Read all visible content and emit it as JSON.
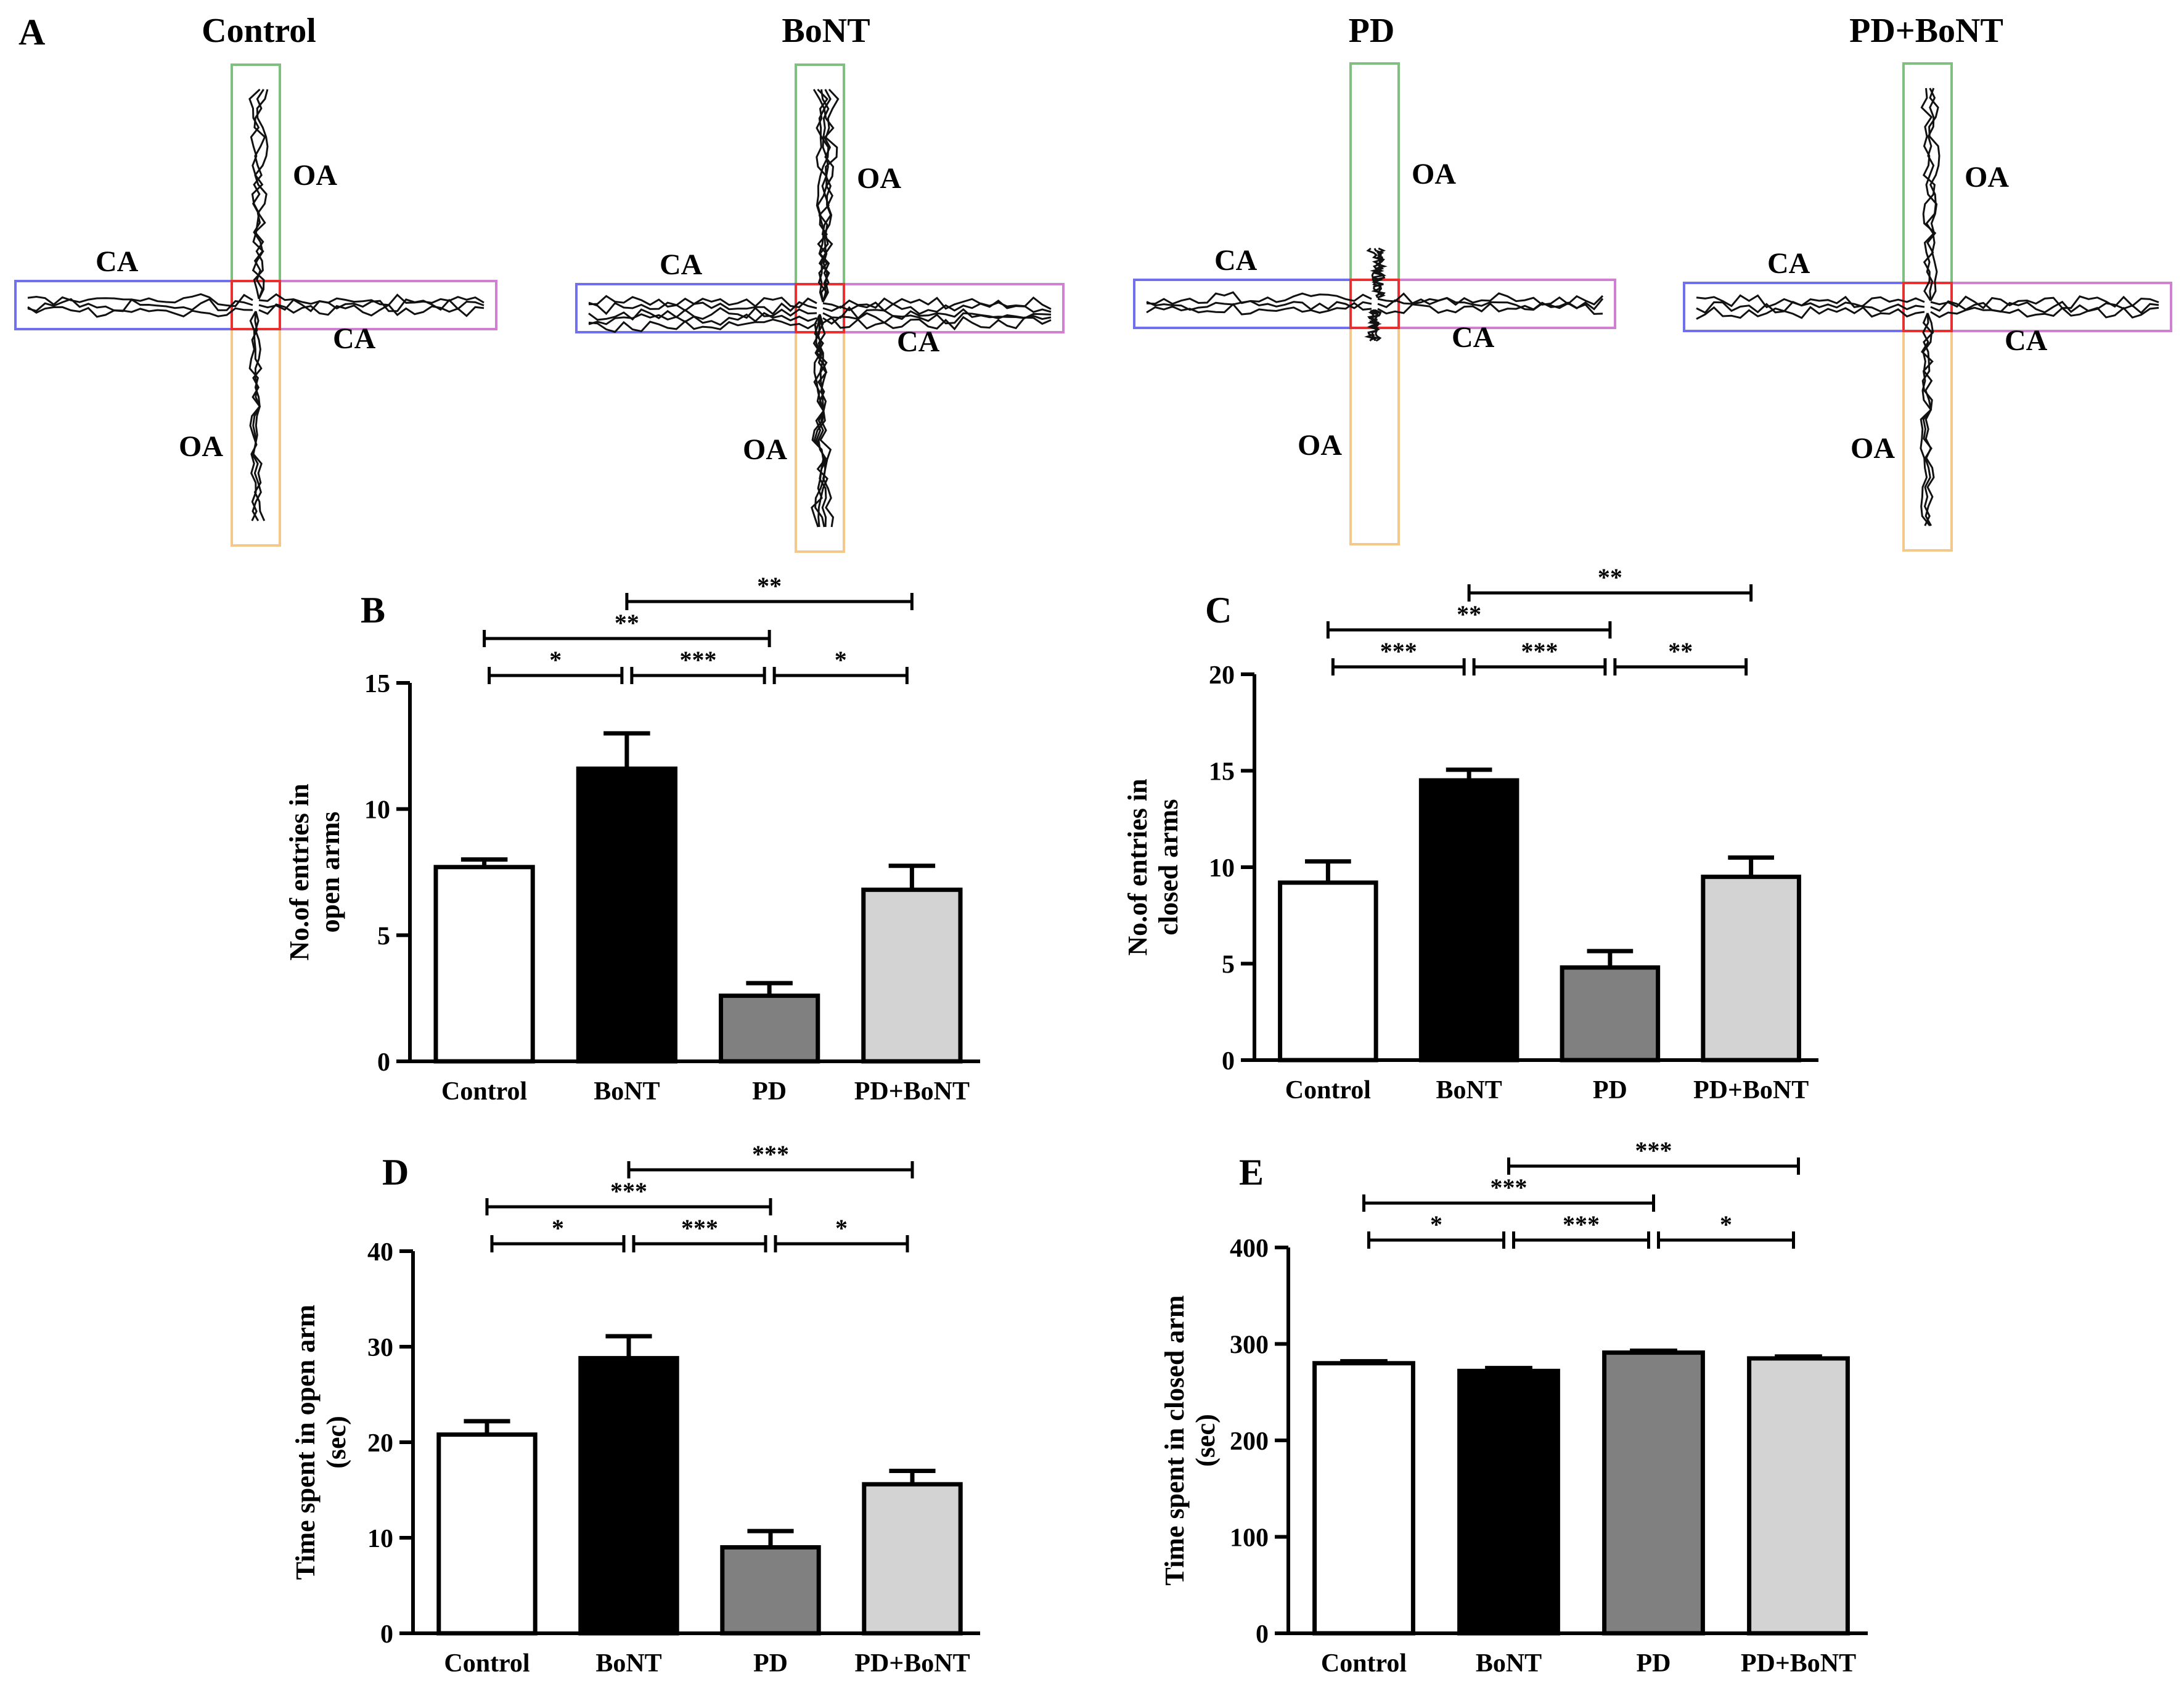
{
  "colors": {
    "control": "#ffffff",
    "bont": "#000000",
    "pd": "#808080",
    "pdbont": "#d3d3d3",
    "arm_open_top": "#7fbf7f",
    "arm_open_bottom": "#f4c88a",
    "arm_closed_left": "#7070ee",
    "arm_closed_right": "#d080d0",
    "center": "#e83030"
  },
  "panel_a": {
    "letter": "A",
    "groups": [
      {
        "title": "Control",
        "oa": "OA",
        "ca": "CA"
      },
      {
        "title": "BoNT",
        "oa": "OA",
        "ca": "CA"
      },
      {
        "title": "PD",
        "oa": "OA",
        "ca": "CA"
      },
      {
        "title": "PD+BoNT",
        "oa": "OA",
        "ca": "CA"
      }
    ]
  },
  "chart_data": [
    {
      "panel": "B",
      "type": "bar",
      "categories": [
        "Control",
        "BoNT",
        "PD",
        "PD+BoNT"
      ],
      "values": [
        7.7,
        11.6,
        2.6,
        6.8
      ],
      "errors": [
        0.3,
        1.4,
        0.5,
        0.95
      ],
      "ylabel_lines": [
        "No.of entries in",
        "open arms"
      ],
      "ylim": [
        0,
        15
      ],
      "yticks": [
        0,
        5,
        10,
        15
      ],
      "significance": [
        {
          "from": 0,
          "to": 1,
          "label": "*"
        },
        {
          "from": 1,
          "to": 2,
          "label": "***"
        },
        {
          "from": 2,
          "to": 3,
          "label": "*"
        },
        {
          "from": 0,
          "to": 2,
          "label": "**"
        },
        {
          "from": 1,
          "to": 3,
          "label": "**"
        }
      ]
    },
    {
      "panel": "C",
      "type": "bar",
      "categories": [
        "Control",
        "BoNT",
        "PD",
        "PD+BoNT"
      ],
      "values": [
        9.2,
        14.5,
        4.8,
        9.5
      ],
      "errors": [
        1.1,
        0.55,
        0.85,
        1.0
      ],
      "ylabel_lines": [
        "No.of entries in",
        "closed arms"
      ],
      "ylim": [
        0,
        20
      ],
      "yticks": [
        0,
        5,
        10,
        15,
        20
      ],
      "significance": [
        {
          "from": 0,
          "to": 1,
          "label": "***"
        },
        {
          "from": 1,
          "to": 2,
          "label": "***"
        },
        {
          "from": 2,
          "to": 3,
          "label": "**"
        },
        {
          "from": 0,
          "to": 2,
          "label": "**"
        },
        {
          "from": 1,
          "to": 3,
          "label": "**"
        }
      ]
    },
    {
      "panel": "D",
      "type": "bar",
      "categories": [
        "Control",
        "BoNT",
        "PD",
        "PD+BoNT"
      ],
      "values": [
        20.8,
        28.8,
        9.0,
        15.6
      ],
      "errors": [
        1.4,
        2.3,
        1.7,
        1.4
      ],
      "ylabel_lines": [
        "Time spent in open arm",
        "(sec)"
      ],
      "ylim": [
        0,
        40
      ],
      "yticks": [
        0,
        10,
        20,
        30,
        40
      ],
      "significance": [
        {
          "from": 0,
          "to": 1,
          "label": "*"
        },
        {
          "from": 1,
          "to": 2,
          "label": "***"
        },
        {
          "from": 2,
          "to": 3,
          "label": "*"
        },
        {
          "from": 0,
          "to": 2,
          "label": "***"
        },
        {
          "from": 1,
          "to": 3,
          "label": "***"
        }
      ]
    },
    {
      "panel": "E",
      "type": "bar",
      "categories": [
        "Control",
        "BoNT",
        "PD",
        "PD+BoNT"
      ],
      "values": [
        280,
        272,
        291,
        285
      ],
      "errors": [
        2,
        3,
        2,
        2
      ],
      "ylabel_lines": [
        "Time spent in closed arm",
        "(sec)"
      ],
      "ylim": [
        0,
        400
      ],
      "yticks": [
        0,
        100,
        200,
        300,
        400
      ],
      "significance": [
        {
          "from": 0,
          "to": 1,
          "label": "*"
        },
        {
          "from": 1,
          "to": 2,
          "label": "***"
        },
        {
          "from": 2,
          "to": 3,
          "label": "*"
        },
        {
          "from": 0,
          "to": 2,
          "label": "***"
        },
        {
          "from": 1,
          "to": 3,
          "label": "***"
        }
      ]
    }
  ]
}
